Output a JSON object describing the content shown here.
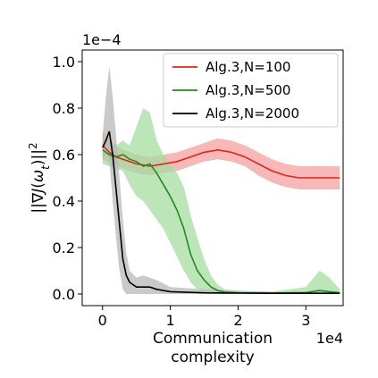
{
  "chart_data": {
    "type": "line",
    "xlabel": "Communication\ncomplexity",
    "ylabel": "||∇J(ω_t)||²",
    "x_scale_label": "1e4",
    "y_scale_label": "1e−4",
    "xlim": [
      -0.3,
      3.55
    ],
    "ylim": [
      -0.05,
      1.05
    ],
    "xticks": [
      0,
      1,
      2,
      3
    ],
    "xtick_labels": [
      "0",
      "1",
      "2",
      "3"
    ],
    "yticks": [
      0.0,
      0.2,
      0.4,
      0.6,
      0.8,
      1.0
    ],
    "ytick_labels": [
      "0.0",
      "0.2",
      "0.4",
      "0.6",
      "0.8",
      "1.0"
    ],
    "legend_position": "top-right",
    "series": [
      {
        "name": "Alg.3,N=100",
        "color": "#e8201c",
        "band_color": "#f4a0a0",
        "x": [
          0.0,
          0.1,
          0.2,
          0.3,
          0.5,
          0.7,
          0.9,
          1.1,
          1.3,
          1.5,
          1.7,
          1.9,
          2.1,
          2.3,
          2.5,
          2.7,
          2.9,
          3.1,
          3.3,
          3.5
        ],
        "mean": [
          0.64,
          0.61,
          0.59,
          0.58,
          0.56,
          0.55,
          0.56,
          0.57,
          0.59,
          0.61,
          0.62,
          0.61,
          0.59,
          0.56,
          0.53,
          0.51,
          0.5,
          0.5,
          0.5,
          0.5
        ],
        "upper": [
          0.7,
          0.67,
          0.64,
          0.62,
          0.6,
          0.59,
          0.6,
          0.61,
          0.63,
          0.65,
          0.67,
          0.66,
          0.64,
          0.61,
          0.58,
          0.56,
          0.55,
          0.55,
          0.55,
          0.55
        ],
        "lower": [
          0.58,
          0.56,
          0.55,
          0.54,
          0.52,
          0.51,
          0.52,
          0.53,
          0.55,
          0.57,
          0.58,
          0.57,
          0.55,
          0.51,
          0.48,
          0.46,
          0.45,
          0.45,
          0.45,
          0.45
        ]
      },
      {
        "name": "Alg.3,N=500",
        "color": "#1e8c1e",
        "band_color": "#a6dca0",
        "x": [
          0.0,
          0.1,
          0.2,
          0.3,
          0.4,
          0.5,
          0.6,
          0.7,
          0.8,
          0.9,
          1.0,
          1.1,
          1.2,
          1.3,
          1.4,
          1.5,
          1.6,
          1.7,
          1.8,
          2.0,
          2.5,
          3.0,
          3.2,
          3.35,
          3.5
        ],
        "mean": [
          0.62,
          0.6,
          0.59,
          0.6,
          0.58,
          0.57,
          0.55,
          0.56,
          0.52,
          0.47,
          0.42,
          0.36,
          0.28,
          0.17,
          0.1,
          0.06,
          0.03,
          0.015,
          0.008,
          0.005,
          0.004,
          0.006,
          0.015,
          0.01,
          0.005
        ],
        "upper": [
          0.68,
          0.64,
          0.64,
          0.66,
          0.64,
          0.72,
          0.8,
          0.78,
          0.66,
          0.6,
          0.56,
          0.52,
          0.46,
          0.34,
          0.24,
          0.15,
          0.08,
          0.04,
          0.02,
          0.012,
          0.01,
          0.03,
          0.1,
          0.07,
          0.02
        ],
        "lower": [
          0.56,
          0.55,
          0.54,
          0.53,
          0.47,
          0.42,
          0.4,
          0.36,
          0.32,
          0.28,
          0.22,
          0.16,
          0.1,
          0.05,
          0.02,
          0.01,
          0.004,
          0.002,
          0.001,
          0.0,
          0.0,
          0.0,
          0.0,
          0.0,
          0.0
        ]
      },
      {
        "name": "Alg.3,N=2000",
        "color": "#000000",
        "band_color": "#b8b8b8",
        "x": [
          0.0,
          0.05,
          0.1,
          0.15,
          0.2,
          0.25,
          0.3,
          0.35,
          0.4,
          0.5,
          0.6,
          0.7,
          0.8,
          1.0,
          1.5,
          2.0,
          2.5,
          3.0,
          3.5
        ],
        "mean": [
          0.63,
          0.66,
          0.7,
          0.6,
          0.45,
          0.3,
          0.15,
          0.08,
          0.05,
          0.03,
          0.03,
          0.03,
          0.02,
          0.01,
          0.005,
          0.004,
          0.003,
          0.003,
          0.003
        ],
        "upper": [
          0.68,
          0.85,
          0.98,
          0.85,
          0.68,
          0.5,
          0.32,
          0.18,
          0.1,
          0.07,
          0.08,
          0.07,
          0.06,
          0.03,
          0.02,
          0.015,
          0.01,
          0.01,
          0.01
        ],
        "lower": [
          0.58,
          0.6,
          0.58,
          0.4,
          0.24,
          0.1,
          0.02,
          0.0,
          0.0,
          0.0,
          0.0,
          0.0,
          0.0,
          0.0,
          0.0,
          0.0,
          0.0,
          0.0,
          0.0
        ]
      }
    ]
  }
}
